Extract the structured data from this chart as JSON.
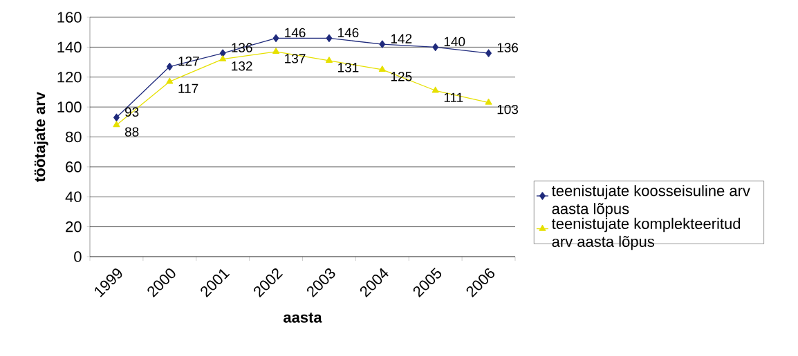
{
  "chart_data": {
    "type": "line",
    "xlabel": "aasta",
    "ylabel": "töötajate arv",
    "categories": [
      "1999",
      "2000",
      "2001",
      "2002",
      "2003",
      "2004",
      "2005",
      "2006"
    ],
    "series": [
      {
        "name": "teenistujate koosseisuline arv aasta lõpus",
        "color": "#1f2a7c",
        "marker": "diamond",
        "values": [
          93,
          127,
          136,
          146,
          146,
          142,
          140,
          136
        ]
      },
      {
        "name": "teenistujate komplekteeritud arv aasta lõpus",
        "color": "#e6e000",
        "marker": "triangle",
        "values": [
          88,
          117,
          132,
          137,
          131,
          125,
          111,
          103
        ]
      }
    ],
    "ylim": [
      0,
      160
    ],
    "yticks": [
      0,
      20,
      40,
      60,
      80,
      100,
      120,
      140,
      160
    ],
    "grid": "y",
    "legend": "right",
    "data_labels": true,
    "line_style": "solid"
  }
}
